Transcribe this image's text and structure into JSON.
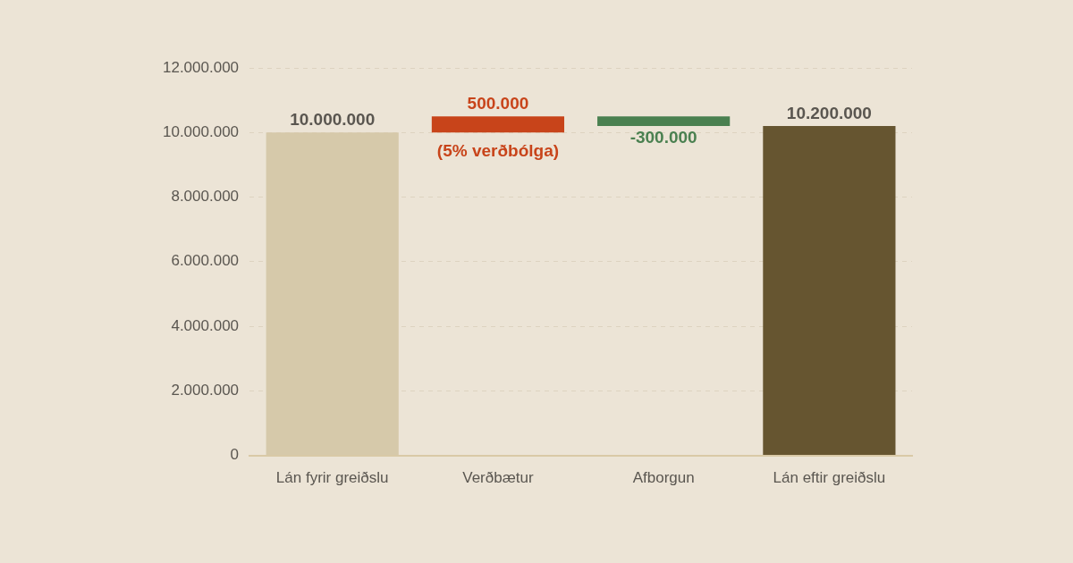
{
  "chart_data": {
    "type": "bar",
    "categories": [
      "Lán fyrir greiðslu",
      "Verðbætur",
      "Afborgun",
      "Lán eftir greiðslu"
    ],
    "values": [
      10000000,
      500000,
      -300000,
      10200000
    ],
    "base": [
      0,
      10000000,
      10500000,
      0
    ],
    "colors": [
      "#d6c9aa",
      "#c8441a",
      "#4a8050",
      "#665530"
    ],
    "value_labels": [
      "10.000.000",
      "500.000",
      "-300.000",
      "10.200.000"
    ],
    "annotations": [
      {
        "text": "(5% verðbólga)",
        "x": "Verðbætur",
        "y": 10000000
      }
    ],
    "ylim": [
      0,
      12000000
    ],
    "yticks": [
      {
        "value": 0,
        "label": "0"
      },
      {
        "value": 2000000,
        "label": "2.000.000"
      },
      {
        "value": 4000000,
        "label": "4.000.000"
      },
      {
        "value": 6000000,
        "label": "6.000.000"
      },
      {
        "value": 8000000,
        "label": "8.000.000"
      },
      {
        "value": 10000000,
        "label": "10.000.000"
      },
      {
        "value": 12000000,
        "label": "12.000.000"
      }
    ],
    "grid": "y",
    "legend": false
  }
}
